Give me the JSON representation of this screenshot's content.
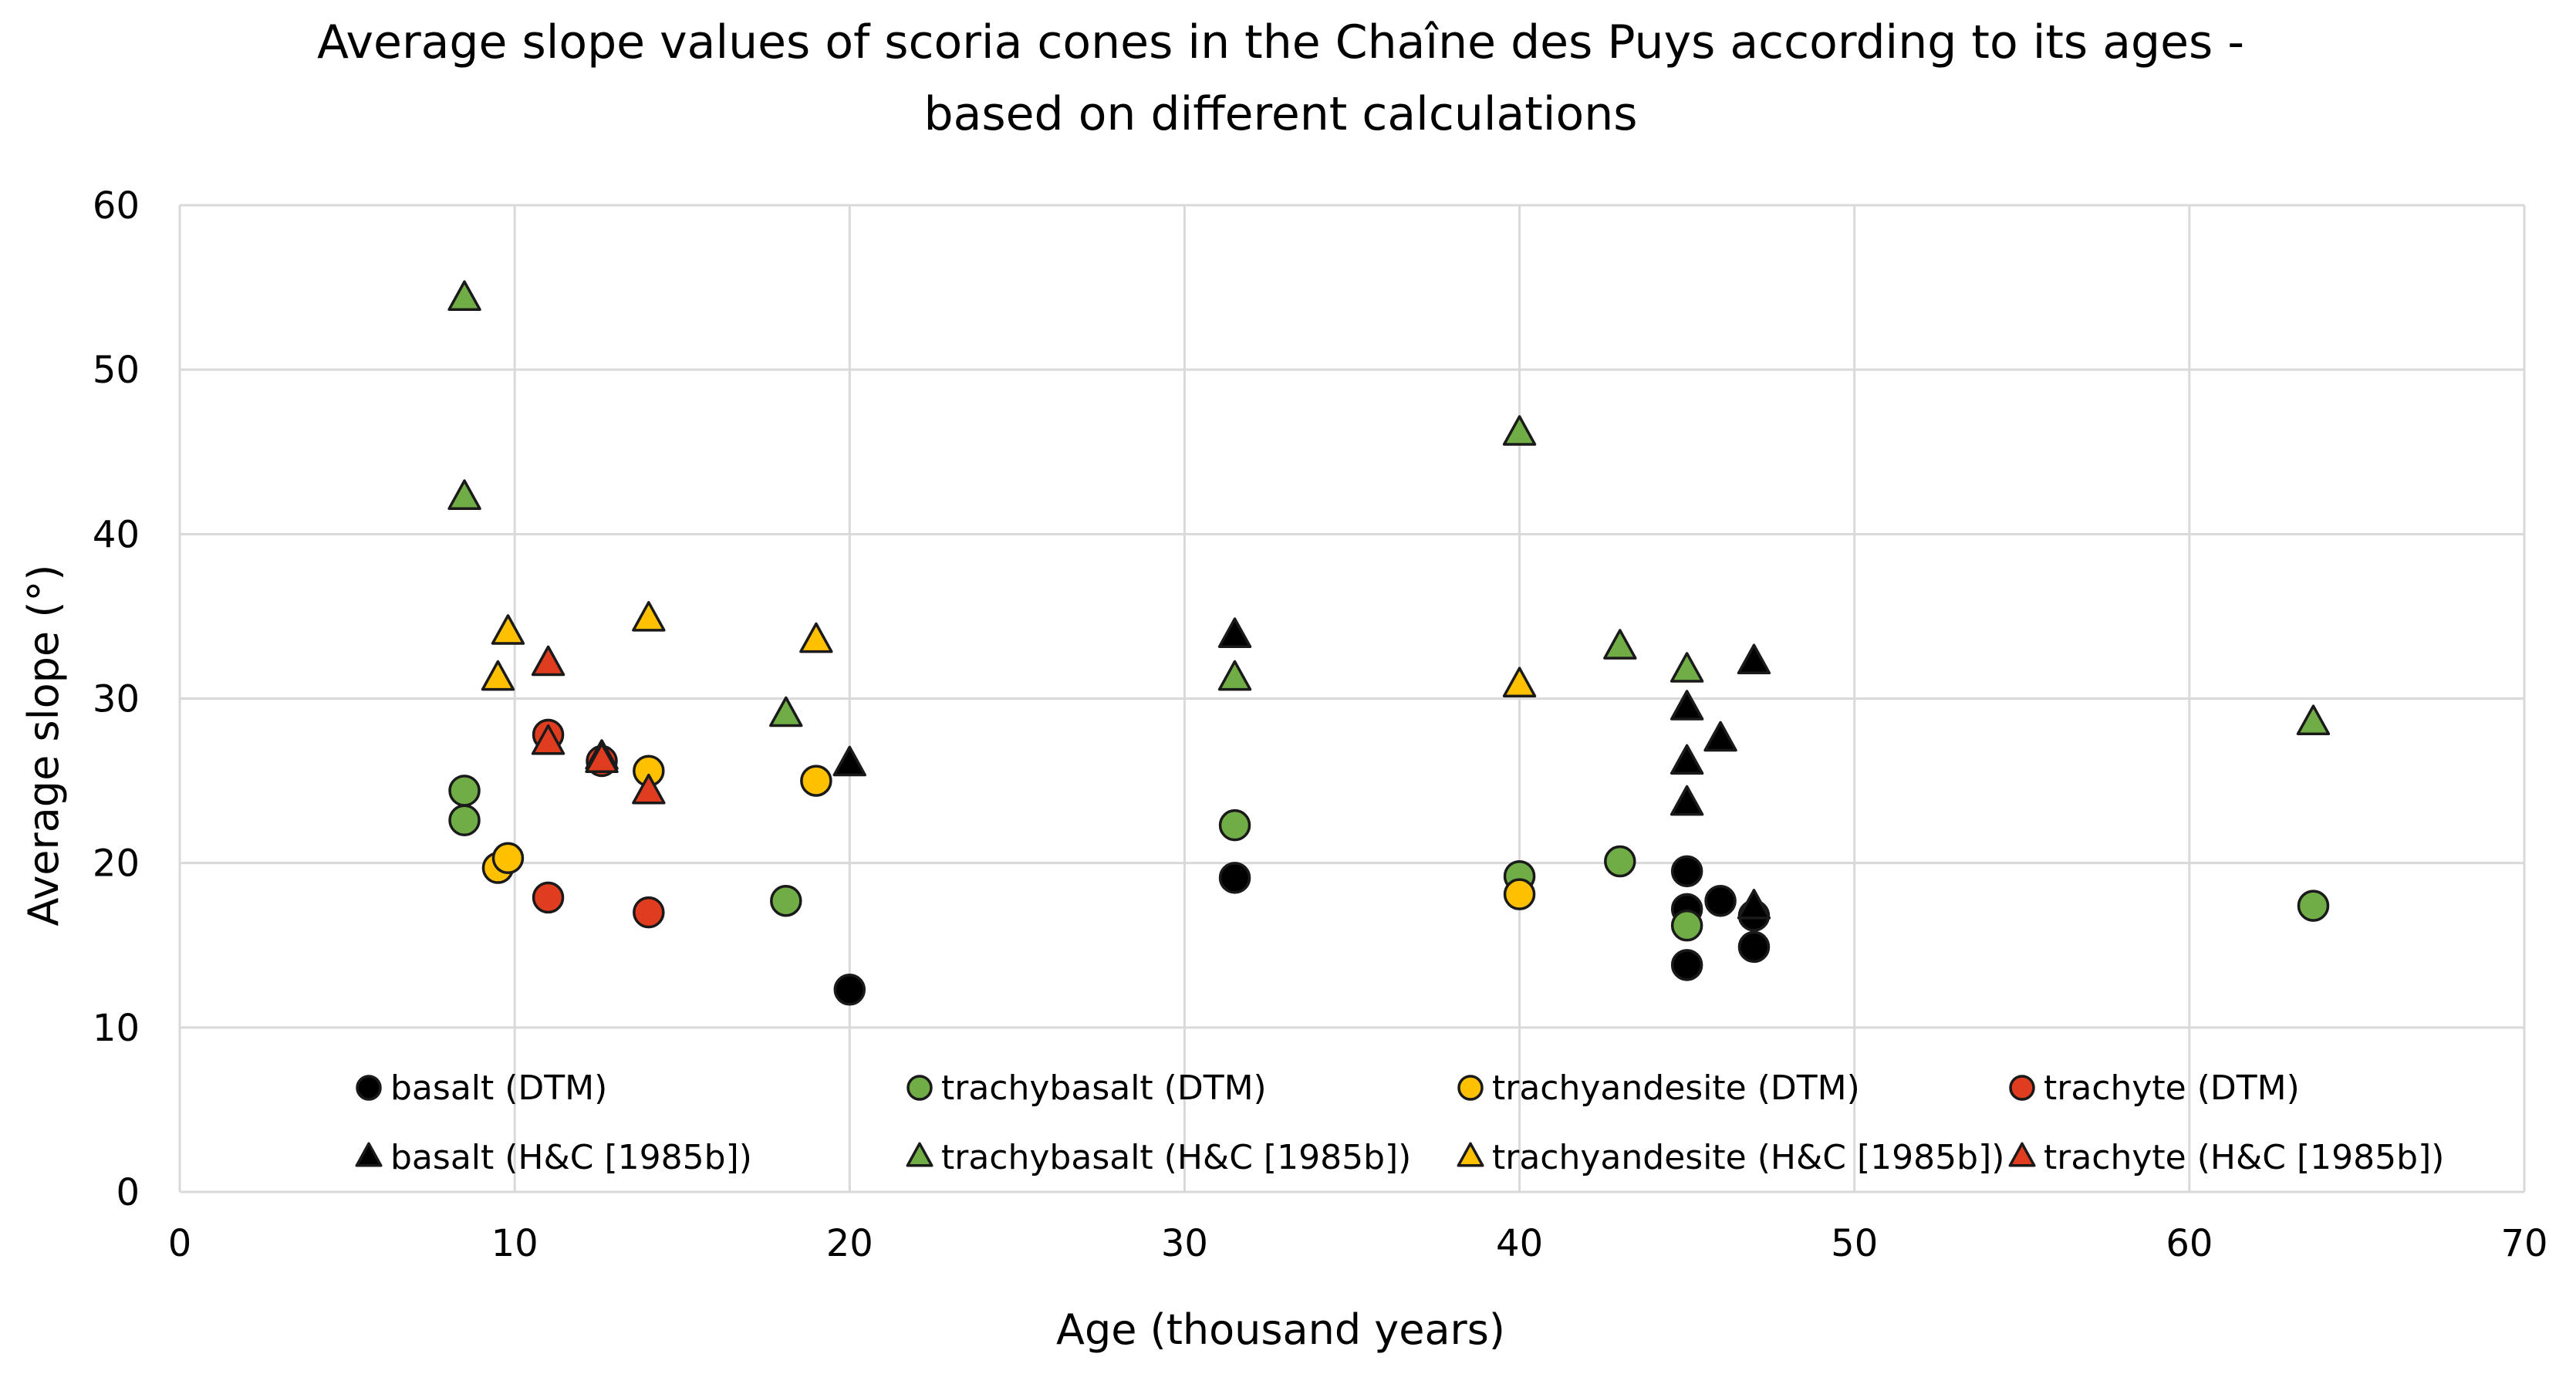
{
  "colors": {
    "basalt": "#000000",
    "trachybasalt": "#70ad47",
    "trachyandesite": "#ffc000",
    "trachyte": "#e03c1f",
    "outline": "#1a1a1a",
    "grid": "#d9d9d9",
    "background": "#ffffff"
  },
  "chart_data": {
    "type": "scatter",
    "title_lines": [
      "Average slope values of scoria cones in the Chaîne des Puys according to its ages -",
      "based on different calculations"
    ],
    "xlabel": "Age (thousand years)",
    "ylabel": "Average slope (°)",
    "xlim": [
      0,
      70
    ],
    "ylim": [
      0,
      60
    ],
    "xticks": [
      0,
      10,
      20,
      30,
      40,
      50,
      60,
      70
    ],
    "yticks": [
      0,
      10,
      20,
      30,
      40,
      50,
      60
    ],
    "grid": true,
    "legend_position": "inside-bottom",
    "series": [
      {
        "name": "basalt (DTM)",
        "marker": "circle",
        "color_key": "basalt",
        "points": [
          [
            20,
            12.3
          ],
          [
            31.5,
            19.1
          ],
          [
            45,
            19.5
          ],
          [
            45,
            17.2
          ],
          [
            45,
            13.8
          ],
          [
            46,
            17.7
          ],
          [
            47,
            16.8
          ],
          [
            47,
            14.9
          ]
        ]
      },
      {
        "name": "trachybasalt (DTM)",
        "marker": "circle",
        "color_key": "trachybasalt",
        "points": [
          [
            8.5,
            24.4
          ],
          [
            8.5,
            22.6
          ],
          [
            18.1,
            17.7
          ],
          [
            31.5,
            22.3
          ],
          [
            40,
            19.2
          ],
          [
            43,
            20.1
          ],
          [
            45,
            16.2
          ],
          [
            63.7,
            17.4
          ]
        ]
      },
      {
        "name": "trachyandesite (DTM)",
        "marker": "circle",
        "color_key": "trachyandesite",
        "points": [
          [
            9.5,
            19.7
          ],
          [
            9.8,
            20.3
          ],
          [
            14,
            25.6
          ],
          [
            19,
            25
          ],
          [
            40,
            18.1
          ]
        ]
      },
      {
        "name": "trachyte (DTM)",
        "marker": "circle",
        "color_key": "trachyte",
        "points": [
          [
            11,
            27.8
          ],
          [
            11,
            17.9
          ],
          [
            12.6,
            26.2
          ],
          [
            14,
            17
          ]
        ]
      },
      {
        "name": "basalt (H&C [1985b])",
        "marker": "triangle",
        "color_key": "basalt",
        "points": [
          [
            12.6,
            26.4
          ],
          [
            20,
            26
          ],
          [
            31.5,
            33.8
          ],
          [
            45,
            29.4
          ],
          [
            45,
            26.1
          ],
          [
            45,
            23.6
          ],
          [
            46,
            27.5
          ],
          [
            47,
            32.2
          ],
          [
            47,
            17.3
          ]
        ]
      },
      {
        "name": "trachybasalt (H&C [1985b])",
        "marker": "triangle",
        "color_key": "trachybasalt",
        "points": [
          [
            8.5,
            54.3
          ],
          [
            8.5,
            42.2
          ],
          [
            18.1,
            29
          ],
          [
            31.5,
            31.2
          ],
          [
            40,
            46.1
          ],
          [
            43,
            33.1
          ],
          [
            45,
            31.7
          ],
          [
            63.7,
            28.5
          ]
        ]
      },
      {
        "name": "trachyandesite (H&C [1985b])",
        "marker": "triangle",
        "color_key": "trachyandesite",
        "points": [
          [
            9.5,
            31.2
          ],
          [
            9.8,
            34
          ],
          [
            14,
            34.8
          ],
          [
            19,
            33.5
          ],
          [
            40,
            30.8
          ]
        ]
      },
      {
        "name": "trachyte (H&C [1985b])",
        "marker": "triangle",
        "color_key": "trachyte",
        "points": [
          [
            11,
            32.1
          ],
          [
            11,
            27.3
          ],
          [
            12.6,
            26.2
          ],
          [
            14,
            24.3
          ]
        ]
      }
    ],
    "legend_rows": [
      [
        "basalt (DTM)",
        "trachybasalt (DTM)",
        "trachyandesite (DTM)",
        "trachyte (DTM)"
      ],
      [
        "basalt (H&C [1985b])",
        "trachybasalt (H&C [1985b])",
        "trachyandesite (H&C [1985b])",
        "trachyte (H&C [1985b])"
      ]
    ]
  }
}
